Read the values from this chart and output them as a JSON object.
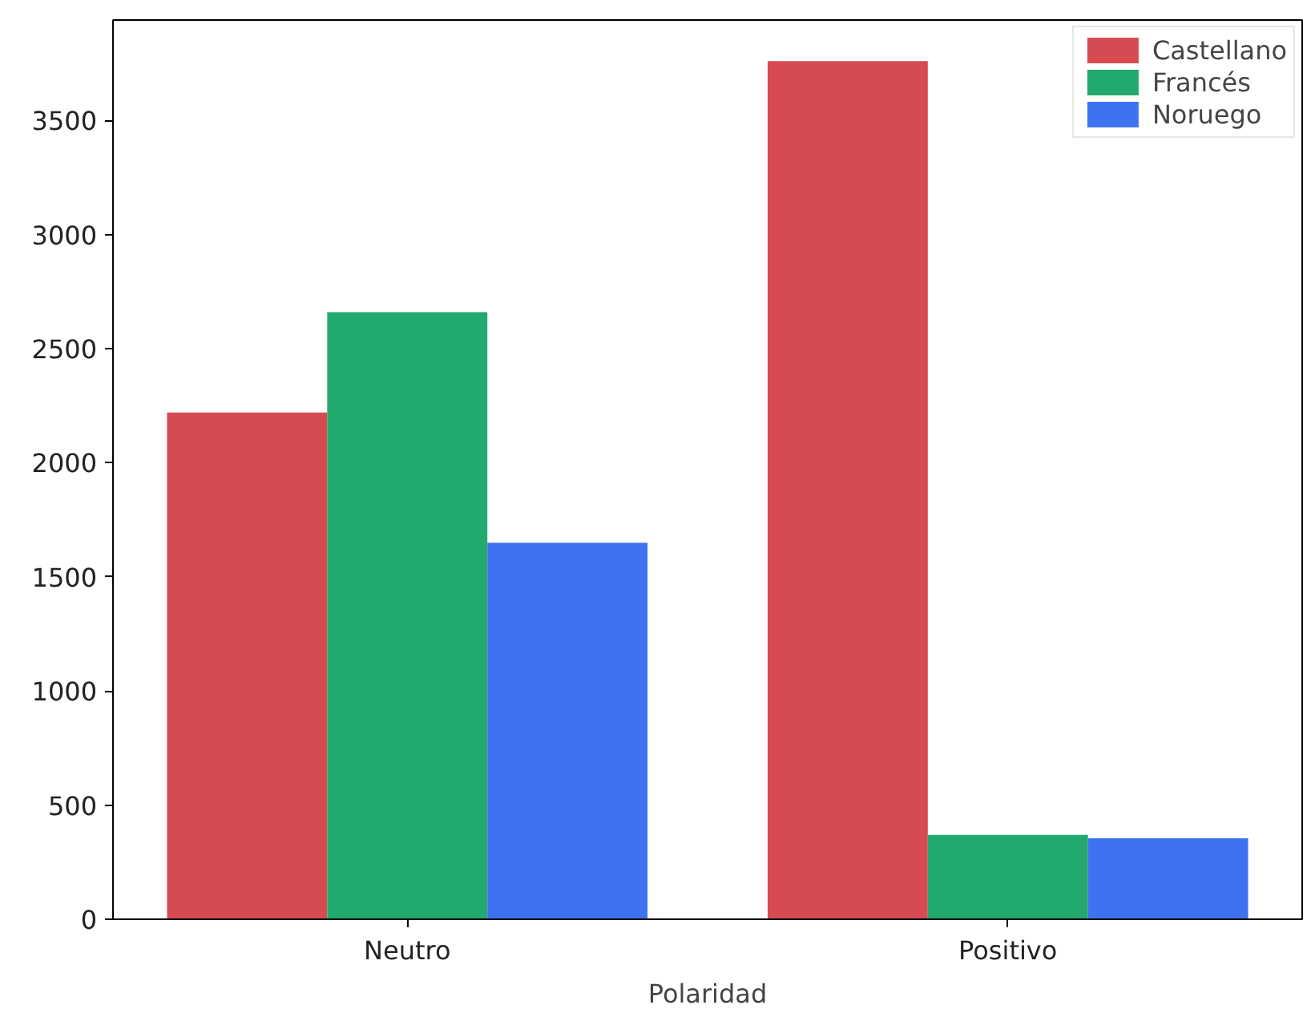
{
  "chart_data": {
    "type": "bar",
    "xlabel": "Polaridad",
    "categories": [
      "Neutro",
      "Positivo"
    ],
    "series": [
      {
        "name": "Castellano",
        "color": "#d64a52",
        "values": [
          2220,
          3760
        ]
      },
      {
        "name": "Francés",
        "color": "#22a96e",
        "values": [
          2660,
          370
        ]
      },
      {
        "name": "Noruego",
        "color": "#3f72f0",
        "values": [
          1650,
          355
        ]
      }
    ],
    "ylim": [
      0,
      3940
    ],
    "yticks": [
      0,
      500,
      1000,
      1500,
      2000,
      2500,
      3000,
      3500
    ],
    "grid": false,
    "legend": "top right"
  }
}
